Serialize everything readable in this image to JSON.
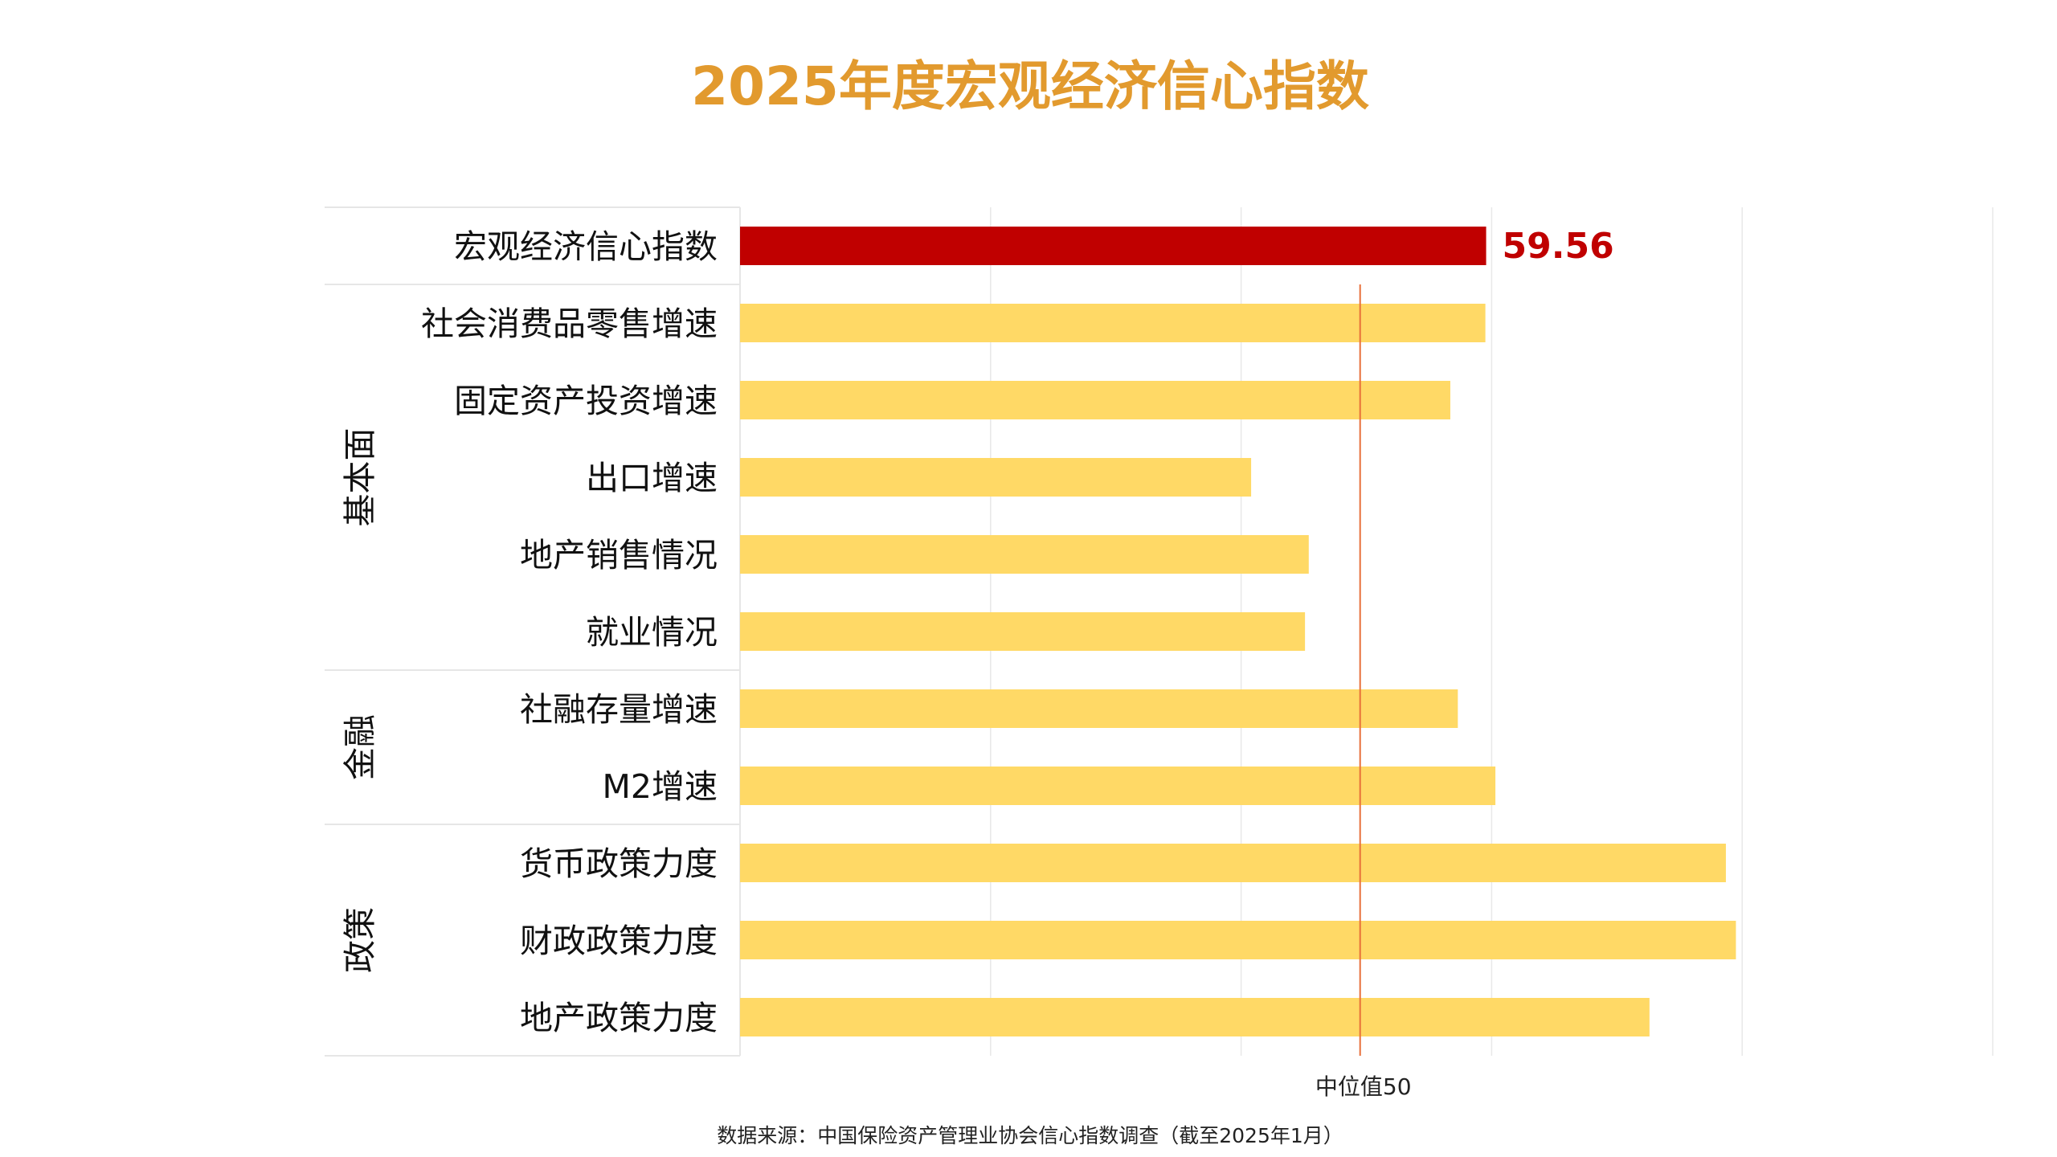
{
  "chart_data": {
    "type": "bar",
    "orientation": "horizontal",
    "title": "2025年度宏观经济信心指数",
    "categories": [
      "宏观经济信心指数",
      "社会消费品零售增速",
      "固定资产投资增速",
      "出口增速",
      "地产销售情况",
      "就业情况",
      "社融存量增速",
      "M2增速",
      "货币政策力度",
      "财政政策力度",
      "地产政策力度"
    ],
    "values": [
      59.56,
      59.5,
      56.7,
      40.8,
      45.4,
      45.1,
      57.3,
      60.3,
      78.7,
      79.5,
      72.6
    ],
    "highlight_index": 0,
    "highlight_value_label": "59.56",
    "groups": [
      {
        "label": "基本面",
        "start": 1,
        "end": 5
      },
      {
        "label": "金融",
        "start": 6,
        "end": 7
      },
      {
        "label": "政策",
        "start": 8,
        "end": 10
      }
    ],
    "xlim": [
      0,
      100
    ],
    "x_gridlines": [
      20,
      40,
      60,
      80,
      100
    ],
    "reference_line": {
      "value": 49.5,
      "label": "中位值50"
    },
    "colors": {
      "highlight": "#C00000",
      "bar": "#FFD966",
      "reference": "#E8703A",
      "grid": "#E8E8E8",
      "title": "#E29A2E"
    },
    "source": "数据来源：中国保险资产管理业协会信心指数调查（截至2025年1月）"
  }
}
